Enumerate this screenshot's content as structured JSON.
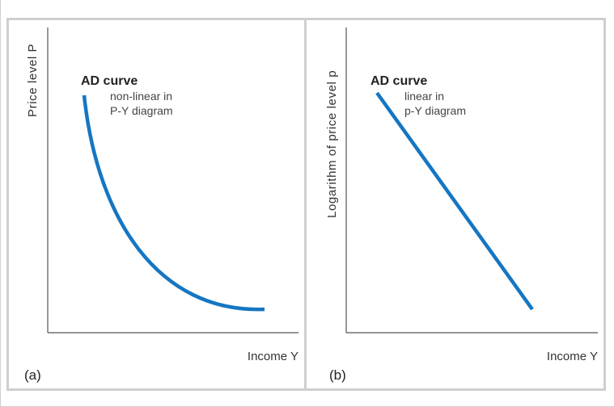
{
  "panel_a": {
    "tag": "(a)",
    "y_axis_label": "Price level P",
    "x_axis_label": "Income Y",
    "curve_title": "AD curve",
    "curve_note_line1": "non-linear in",
    "curve_note_line2": "P-Y diagram",
    "curve_color": "#1576c2"
  },
  "panel_b": {
    "tag": "(b)",
    "y_axis_label": "Logarithm of price level p",
    "x_axis_label": "Income Y",
    "curve_title": "AD curve",
    "curve_note_line1": "linear in",
    "curve_note_line2": "p-Y diagram",
    "curve_color": "#1576c2"
  }
}
